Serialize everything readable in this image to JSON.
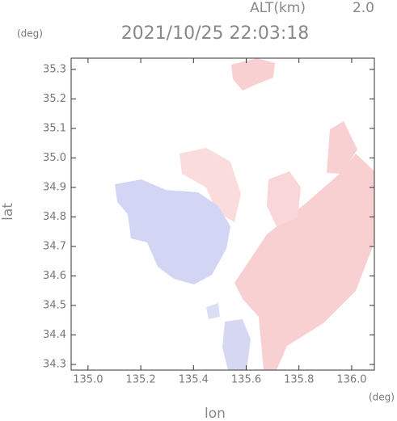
{
  "chart_data": {
    "type": "map",
    "title": "2021/10/25 22:03:18",
    "altitude_label": "ALT(km)",
    "altitude": "2.0",
    "x_unit": "(deg)",
    "y_unit": "(deg)",
    "xlabel": "lon",
    "ylabel": "lat",
    "xlim": [
      134.936,
      136.086
    ],
    "ylim": [
      34.281,
      35.338
    ],
    "xticks": [
      {
        "value": 135,
        "label": "135.0"
      },
      135.2,
      135.4,
      135.6,
      135.8,
      {
        "value": 136,
        "label": "136.0"
      }
    ],
    "yticks": [
      34.3,
      34.4,
      34.5,
      34.6,
      34.7,
      34.8,
      34.9,
      {
        "value": 35,
        "label": "35.0"
      },
      35.1,
      35.2,
      35.3
    ]
  }
}
